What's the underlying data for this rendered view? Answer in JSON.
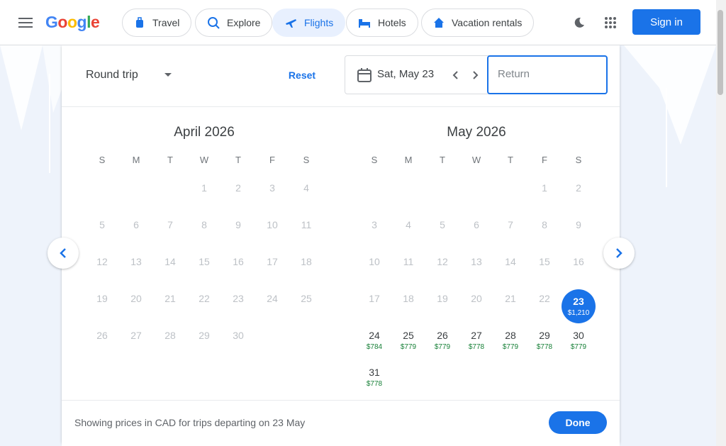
{
  "logo": {
    "letters": [
      {
        "c": "G",
        "color": "#4285f4"
      },
      {
        "c": "o",
        "color": "#ea4335"
      },
      {
        "c": "o",
        "color": "#fbbc05"
      },
      {
        "c": "g",
        "color": "#4285f4"
      },
      {
        "c": "l",
        "color": "#34a853"
      },
      {
        "c": "e",
        "color": "#ea4335"
      }
    ]
  },
  "nav": {
    "travel": "Travel",
    "explore": "Explore",
    "flights": "Flights",
    "hotels": "Hotels",
    "vacation": "Vacation rentals",
    "signin": "Sign in"
  },
  "trip": {
    "type": "Round trip",
    "reset": "Reset",
    "departure": "Sat, May 23",
    "return_placeholder": "Return"
  },
  "calendar": {
    "dow": [
      "S",
      "M",
      "T",
      "W",
      "T",
      "F",
      "S"
    ],
    "months": [
      {
        "title": "April 2026",
        "startDow": 3,
        "days": 30,
        "avail": [],
        "prices": {}
      },
      {
        "title": "May 2026",
        "startDow": 5,
        "days": 31,
        "avail": [
          23,
          24,
          25,
          26,
          27,
          28,
          29,
          30,
          31
        ],
        "prices": {
          "23": "$1,210",
          "24": "$784",
          "25": "$779",
          "26": "$779",
          "27": "$778",
          "28": "$779",
          "29": "$778",
          "30": "$779",
          "31": "$778"
        },
        "selected": 23
      }
    ]
  },
  "footer": {
    "text": "Showing prices in CAD for trips departing on 23 May",
    "done": "Done"
  },
  "colors": {
    "accent": "#1a73e8",
    "price": "#188038"
  }
}
